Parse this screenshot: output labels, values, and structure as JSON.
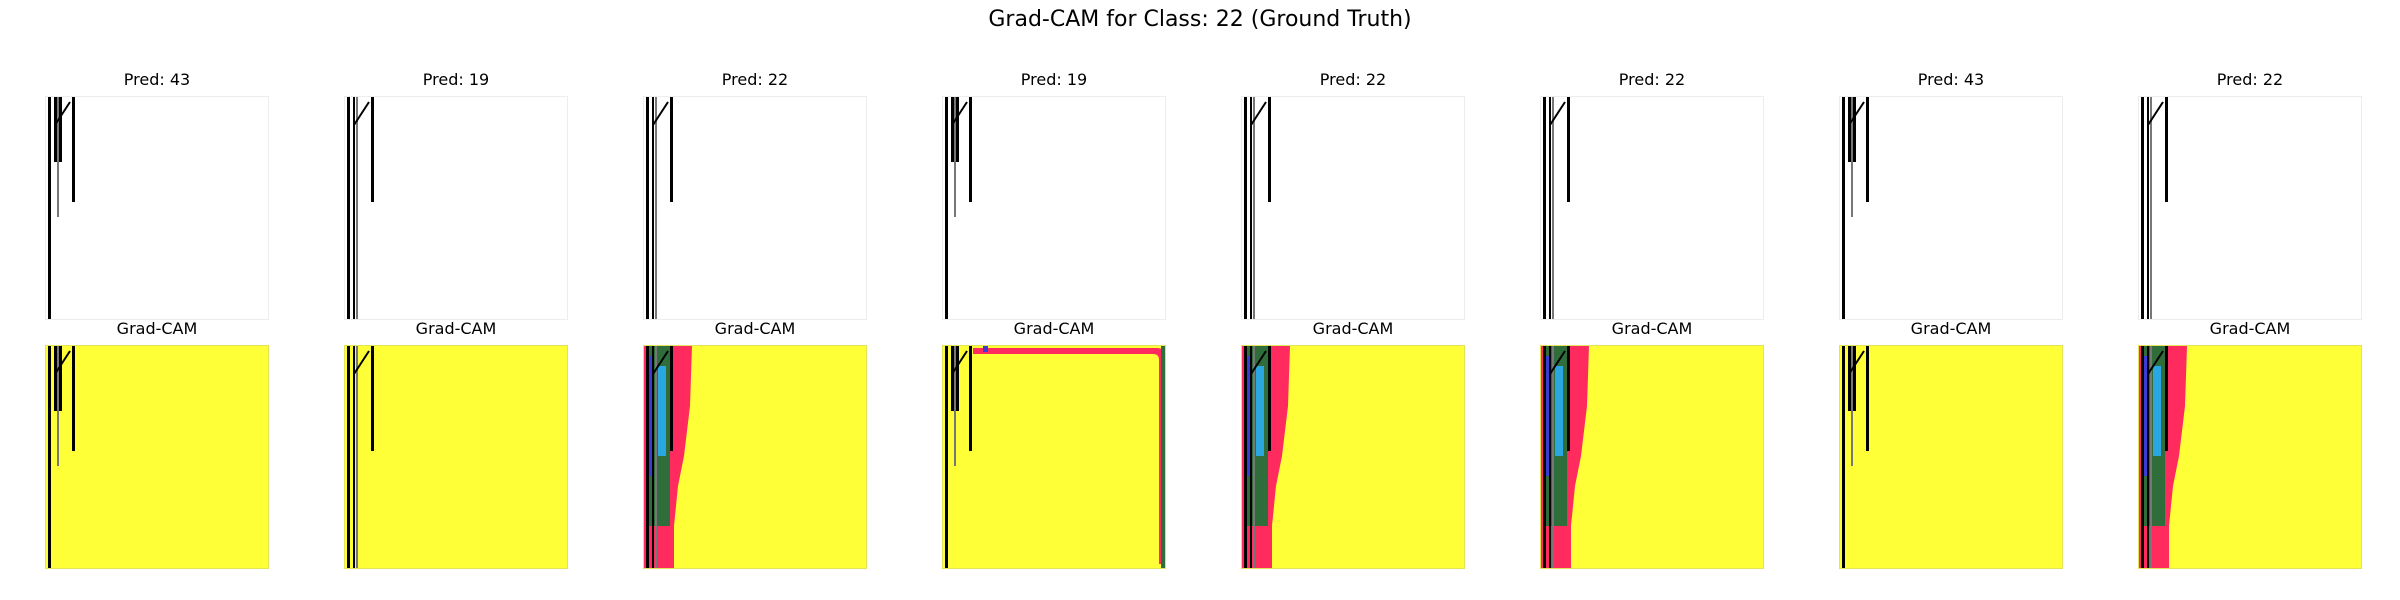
{
  "figure": {
    "title": "Grad-CAM for Class: 22 (Ground Truth)"
  },
  "panels": [
    {
      "pred_label": "Pred: 43",
      "cam_label": "Grad-CAM",
      "cam_overlay": "none"
    },
    {
      "pred_label": "Pred: 19",
      "cam_label": "Grad-CAM",
      "cam_overlay": "none"
    },
    {
      "pred_label": "Pred: 22",
      "cam_label": "Grad-CAM",
      "cam_overlay": "left-edge"
    },
    {
      "pred_label": "Pred: 19",
      "cam_label": "Grad-CAM",
      "cam_overlay": "frame"
    },
    {
      "pred_label": "Pred: 22",
      "cam_label": "Grad-CAM",
      "cam_overlay": "left-edge"
    },
    {
      "pred_label": "Pred: 22",
      "cam_label": "Grad-CAM",
      "cam_overlay": "left-edge"
    },
    {
      "pred_label": "Pred: 43",
      "cam_label": "Grad-CAM",
      "cam_overlay": "none"
    },
    {
      "pred_label": "Pred: 22",
      "cam_label": "Grad-CAM",
      "cam_overlay": "left-edge"
    }
  ],
  "colors": {
    "cam_background": "#ffff38",
    "overlay_red": "#ff2b5e",
    "overlay_green": "#2f6d3a",
    "overlay_blue": "#3b3bd6",
    "overlay_cyan": "#2aa7e0",
    "stroke": "#000000"
  }
}
